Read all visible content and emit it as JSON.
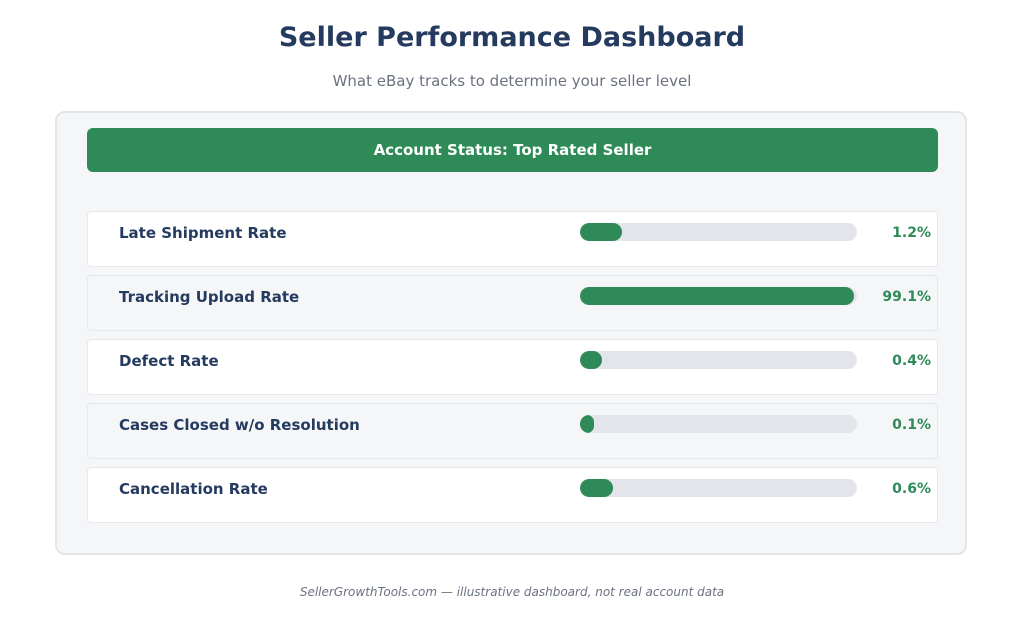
{
  "header": {
    "title": "Seller Performance Dashboard",
    "subtitle": "What eBay tracks to determine your seller level"
  },
  "status": {
    "label": "Account Status: Top Rated Seller"
  },
  "metrics": [
    {
      "label": "Late Shipment Rate",
      "value": "1.2%",
      "bar_fraction": 0.15
    },
    {
      "label": "Tracking Upload Rate",
      "value": "99.1%",
      "bar_fraction": 0.99
    },
    {
      "label": "Defect Rate",
      "value": "0.4%",
      "bar_fraction": 0.08
    },
    {
      "label": "Cases Closed w/o Resolution",
      "value": "0.1%",
      "bar_fraction": 0.05
    },
    {
      "label": "Cancellation Rate",
      "value": "0.6%",
      "bar_fraction": 0.12
    }
  ],
  "footer": {
    "text": "SellerGrowthTools.com — illustrative dashboard, not real account data"
  },
  "colors": {
    "accent": "#2e8b57",
    "title": "#243a5e",
    "track": "#e3e5ea"
  }
}
